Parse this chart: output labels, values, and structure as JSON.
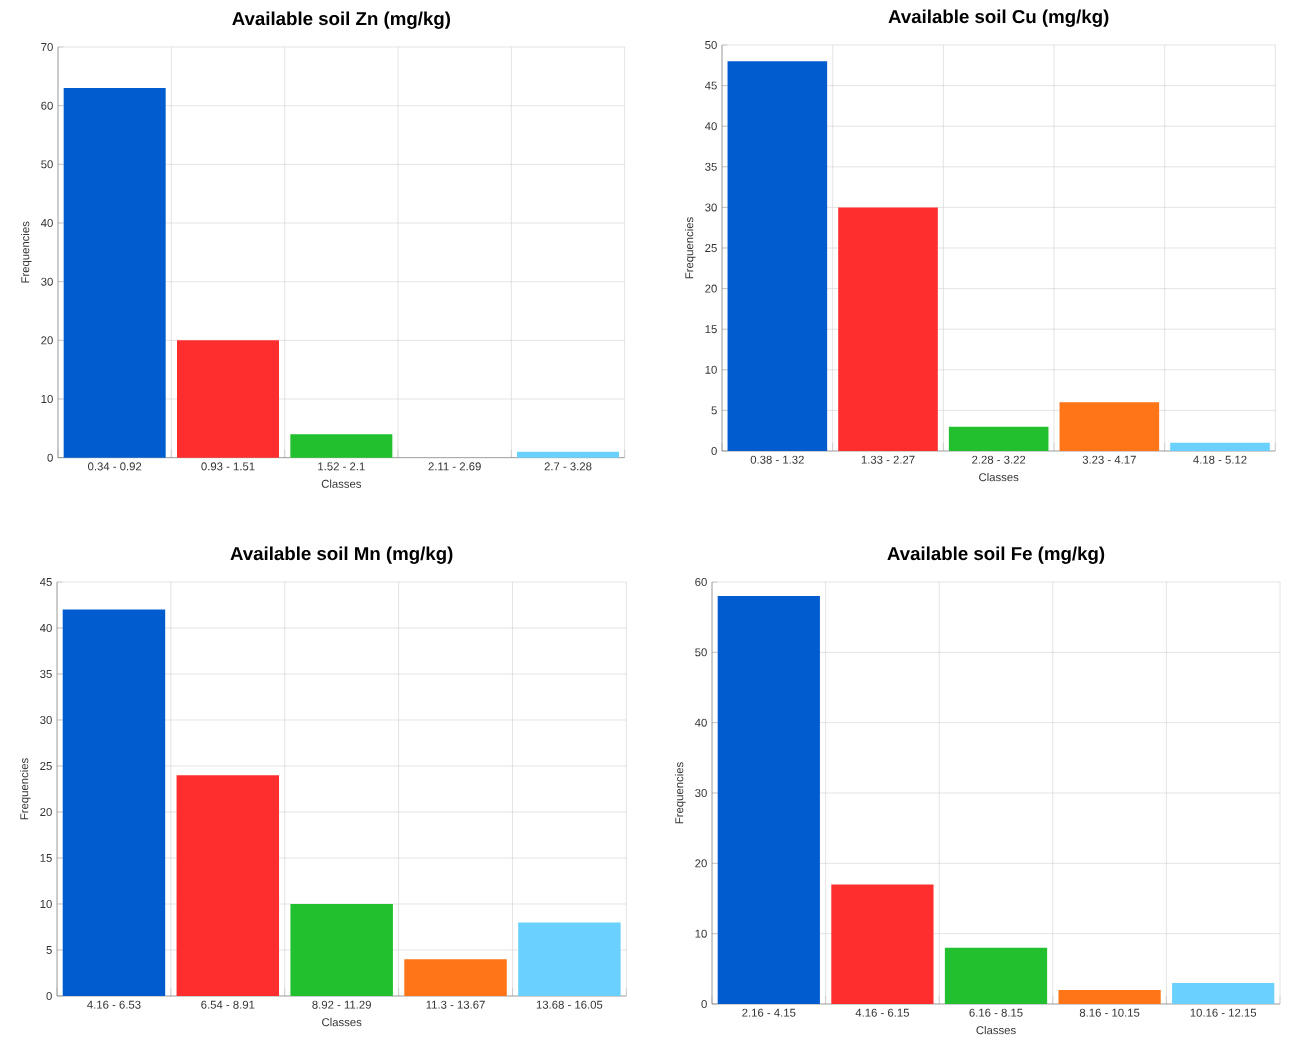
{
  "chart_data": [
    {
      "type": "bar",
      "title": "Available soil Zn (mg/kg)",
      "xlabel": "Classes",
      "ylabel": "Frequencies",
      "categories": [
        "0.34 - 0.92",
        "0.93 - 1.51",
        "1.52 - 2.1",
        "2.11 - 2.69",
        "2.7 - 3.28"
      ],
      "values": [
        63,
        20,
        4,
        0,
        1
      ],
      "colors": [
        "#005ccf",
        "#ff2e2e",
        "#22c02e",
        "#ff7518",
        "#6ad1ff"
      ],
      "ylim": [
        0,
        70
      ],
      "yticks": [
        0,
        10,
        20,
        30,
        40,
        50,
        60,
        70
      ],
      "grid": true
    },
    {
      "type": "bar",
      "title": "Available soil Cu (mg/kg)",
      "xlabel": "Classes",
      "ylabel": "Frequencies",
      "categories": [
        "0.38 - 1.32",
        "1.33 - 2.27",
        "2.28 - 3.22",
        "3.23 - 4.17",
        "4.18 - 5.12"
      ],
      "values": [
        48,
        30,
        3,
        6,
        1
      ],
      "colors": [
        "#005ccf",
        "#ff2e2e",
        "#22c02e",
        "#ff7518",
        "#6ad1ff"
      ],
      "ylim": [
        0,
        50
      ],
      "yticks": [
        0,
        5,
        10,
        15,
        20,
        25,
        30,
        35,
        40,
        45,
        50
      ],
      "grid": true
    },
    {
      "type": "bar",
      "title": "Available soil Mn (mg/kg)",
      "xlabel": "Classes",
      "ylabel": "Frequencies",
      "categories": [
        "4.16 - 6.53",
        "6.54 - 8.91",
        "8.92 - 11.29",
        "11.3 - 13.67",
        "13.68 - 16.05"
      ],
      "values": [
        42,
        24,
        10,
        4,
        8
      ],
      "colors": [
        "#005ccf",
        "#ff2e2e",
        "#22c02e",
        "#ff7518",
        "#6ad1ff"
      ],
      "ylim": [
        0,
        45
      ],
      "yticks": [
        0,
        5,
        10,
        15,
        20,
        25,
        30,
        35,
        40,
        45
      ],
      "grid": true
    },
    {
      "type": "bar",
      "title": "Available soil Fe (mg/kg)",
      "xlabel": "Classes",
      "ylabel": "Frequencies",
      "categories": [
        "2.16 - 4.15",
        "4.16 - 6.15",
        "6.16 - 8.15",
        "8.16 - 10.15",
        "10.16 - 12.15"
      ],
      "values": [
        58,
        17,
        8,
        2,
        3
      ],
      "colors": [
        "#005ccf",
        "#ff2e2e",
        "#22c02e",
        "#ff7518",
        "#6ad1ff"
      ],
      "ylim": [
        0,
        60
      ],
      "yticks": [
        0,
        10,
        20,
        30,
        40,
        50,
        60
      ],
      "grid": true
    }
  ]
}
